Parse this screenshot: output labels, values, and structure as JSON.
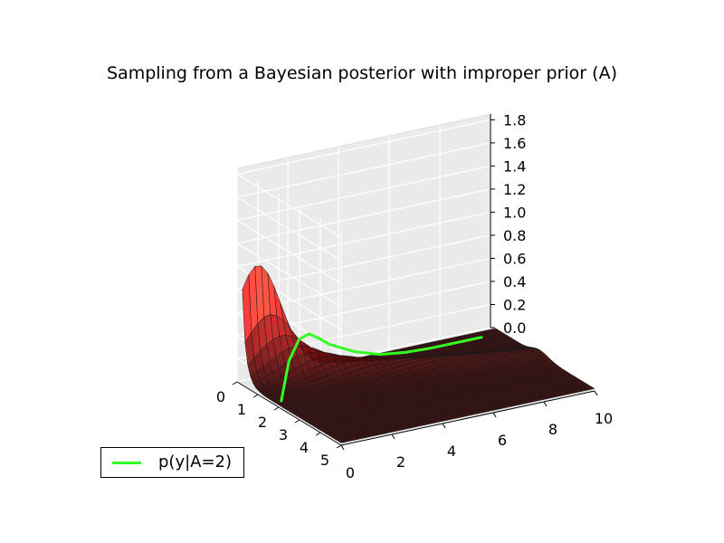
{
  "chart_data": {
    "type": "surface3d",
    "title": "Sampling from a Bayesian posterior with improper prior (A)",
    "x_axis": {
      "ticks": [
        "0",
        "1",
        "2",
        "3",
        "4",
        "5"
      ],
      "range": [
        0,
        5
      ]
    },
    "y_axis": {
      "ticks": [
        "0",
        "2",
        "4",
        "6",
        "8",
        "10"
      ],
      "range": [
        0,
        10
      ]
    },
    "z_axis": {
      "ticks": [
        "0.0",
        "0.2",
        "0.4",
        "0.6",
        "0.8",
        "1.0",
        "1.2",
        "1.4",
        "1.6",
        "1.8"
      ],
      "range": [
        0,
        1.85
      ]
    },
    "grid": true,
    "colormap": {
      "low": "#000000",
      "mid": "#ff2a2a",
      "high": "#ffff66"
    },
    "surface": {
      "x": [
        0.25,
        0.5,
        0.75,
        1.0,
        1.5,
        2.0,
        2.5,
        3.0,
        4.0,
        5.0
      ],
      "y": [
        0,
        0.5,
        1,
        1.5,
        2,
        3,
        4,
        6,
        8,
        10
      ],
      "peak": {
        "x": 0.25,
        "y": 0.8,
        "z": 1.8
      }
    },
    "series": [
      {
        "name": "p(y|A=2)",
        "color": "#33ff22",
        "x_fixed": 2,
        "y": [
          0.1,
          0.4,
          0.8,
          1.2,
          1.6,
          2.0,
          3.0,
          4.0,
          5.0,
          6.0,
          7.0,
          8.0
        ],
        "z": [
          0.05,
          0.38,
          0.55,
          0.58,
          0.52,
          0.45,
          0.34,
          0.27,
          0.24,
          0.23,
          0.23,
          0.23
        ]
      }
    ],
    "legend": {
      "position": "bottom-left",
      "entries": [
        "p(y|A=2)"
      ]
    }
  }
}
